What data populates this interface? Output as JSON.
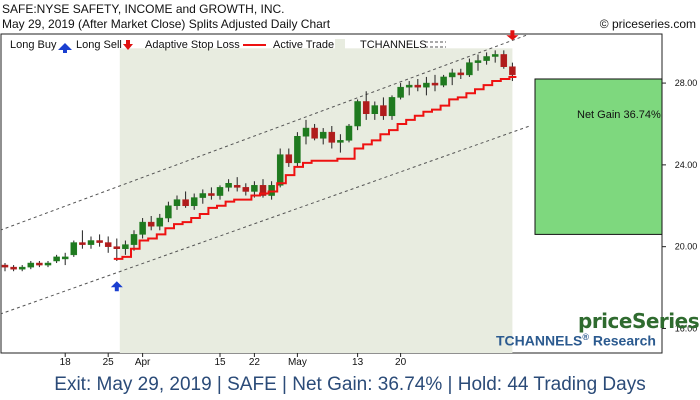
{
  "header": {
    "symbol_line": "SAFE:NYSE SAFETY, INCOME and GROWTH, INC.",
    "date_line": "May 29, 2019 (After Market Close)  Splits Adjusted Daily Chart",
    "copyright": "© priceseries.com"
  },
  "legend": {
    "long_buy": "Long Buy",
    "long_sell": "Long Sell",
    "stop_loss": "Adaptive Stop Loss",
    "active_trade": "Active Trade",
    "tchannels": "TCHANNELS"
  },
  "net_gain_label": "Net Gain 36.74%",
  "brand": {
    "name": "priceSeries",
    "research": "TCHANNELS",
    "research_suffix": " Research",
    "reg": "®"
  },
  "footer": "Exit: May 29, 2019 | SAFE | Net Gain: 36.74% | Hold: 44 Trading Days",
  "colors": {
    "up": "#1f7a1f",
    "down": "#b01c1c",
    "stop": "#ee1111",
    "trade_bg": "#e8ece0",
    "gain_box": "#7ed87e",
    "buy_arrow": "#1a3fd0",
    "sell_arrow": "#e01010",
    "channel": "#555555"
  },
  "chart_data": {
    "type": "candlestick",
    "x_ticks": [
      {
        "label": "18",
        "i": 7
      },
      {
        "label": "25",
        "i": 12
      },
      {
        "label": "Apr",
        "i": 16
      },
      {
        "label": "15",
        "i": 25
      },
      {
        "label": "22",
        "i": 29
      },
      {
        "label": "May",
        "i": 34
      },
      {
        "label": "13",
        "i": 41
      },
      {
        "label": "20",
        "i": 46
      }
    ],
    "y_ticks": [
      16,
      20,
      24,
      28
    ],
    "ylim": [
      14.8,
      30.4
    ],
    "candles": [
      [
        19.1,
        19.2,
        18.8,
        19.0
      ],
      [
        19.0,
        19.1,
        18.8,
        18.9
      ],
      [
        18.9,
        19.1,
        18.8,
        19.0
      ],
      [
        19.0,
        19.3,
        18.9,
        19.2
      ],
      [
        19.2,
        19.3,
        19.0,
        19.1
      ],
      [
        19.1,
        19.3,
        19.0,
        19.2
      ],
      [
        19.3,
        19.6,
        19.2,
        19.5
      ],
      [
        19.4,
        19.7,
        19.1,
        19.5
      ],
      [
        19.6,
        20.3,
        19.5,
        20.2
      ],
      [
        20.2,
        20.8,
        19.9,
        20.1
      ],
      [
        20.1,
        20.5,
        19.9,
        20.3
      ],
      [
        20.3,
        20.6,
        20.0,
        20.2
      ],
      [
        20.2,
        20.5,
        19.7,
        20.0
      ],
      [
        20.0,
        20.4,
        19.3,
        19.9
      ],
      [
        19.9,
        20.3,
        19.6,
        20.1
      ],
      [
        20.1,
        20.8,
        19.8,
        20.6
      ],
      [
        20.6,
        21.4,
        20.4,
        21.2
      ],
      [
        21.2,
        21.5,
        20.8,
        21.0
      ],
      [
        21.0,
        21.6,
        20.8,
        21.4
      ],
      [
        21.4,
        22.2,
        21.2,
        22.0
      ],
      [
        22.0,
        22.5,
        21.8,
        22.3
      ],
      [
        22.3,
        22.7,
        21.9,
        22.0
      ],
      [
        22.0,
        22.6,
        21.8,
        22.4
      ],
      [
        22.4,
        22.8,
        22.1,
        22.6
      ],
      [
        22.6,
        22.9,
        22.3,
        22.5
      ],
      [
        22.5,
        23.0,
        22.3,
        22.9
      ],
      [
        22.9,
        23.3,
        22.7,
        23.1
      ],
      [
        23.0,
        23.4,
        22.7,
        22.9
      ],
      [
        22.9,
        23.1,
        22.5,
        22.7
      ],
      [
        22.7,
        23.2,
        22.4,
        23.0
      ],
      [
        23.0,
        23.3,
        22.4,
        22.5
      ],
      [
        22.5,
        23.2,
        22.3,
        23.0
      ],
      [
        23.0,
        24.8,
        22.9,
        24.5
      ],
      [
        24.5,
        24.8,
        23.9,
        24.1
      ],
      [
        24.1,
        25.6,
        23.9,
        25.4
      ],
      [
        25.4,
        26.2,
        25.0,
        25.8
      ],
      [
        25.8,
        26.0,
        25.2,
        25.3
      ],
      [
        25.3,
        25.8,
        25.0,
        25.6
      ],
      [
        25.6,
        25.9,
        24.8,
        25.1
      ],
      [
        25.1,
        25.5,
        24.6,
        25.2
      ],
      [
        25.2,
        26.0,
        25.1,
        25.9
      ],
      [
        25.9,
        27.2,
        25.7,
        27.1
      ],
      [
        27.1,
        27.6,
        26.2,
        26.5
      ],
      [
        26.5,
        27.1,
        26.2,
        26.9
      ],
      [
        26.9,
        27.3,
        26.2,
        26.4
      ],
      [
        26.4,
        27.4,
        26.2,
        27.3
      ],
      [
        27.3,
        28.0,
        27.2,
        27.8
      ],
      [
        27.8,
        28.1,
        27.4,
        27.9
      ],
      [
        27.9,
        28.2,
        27.6,
        27.8
      ],
      [
        27.8,
        28.3,
        27.4,
        28.0
      ],
      [
        28.0,
        28.4,
        27.6,
        27.9
      ],
      [
        27.9,
        28.4,
        27.8,
        28.3
      ],
      [
        28.3,
        28.7,
        27.9,
        28.5
      ],
      [
        28.5,
        28.7,
        28.2,
        28.4
      ],
      [
        28.4,
        29.2,
        28.3,
        29.0
      ],
      [
        29.0,
        29.4,
        28.6,
        29.1
      ],
      [
        29.1,
        29.5,
        28.9,
        29.3
      ],
      [
        29.3,
        29.6,
        29.0,
        29.4
      ],
      [
        29.4,
        29.6,
        28.7,
        28.8
      ],
      [
        28.8,
        29.0,
        28.1,
        28.4
      ]
    ],
    "stop_loss": [
      [
        13,
        19.4
      ],
      [
        14,
        19.5
      ],
      [
        15,
        19.9
      ],
      [
        16,
        20.3
      ],
      [
        17,
        20.4
      ],
      [
        18,
        20.6
      ],
      [
        19,
        20.9
      ],
      [
        20,
        21.1
      ],
      [
        21,
        21.2
      ],
      [
        22,
        21.4
      ],
      [
        23,
        21.6
      ],
      [
        24,
        21.9
      ],
      [
        25,
        22.0
      ],
      [
        26,
        22.2
      ],
      [
        27,
        22.3
      ],
      [
        28,
        22.3
      ],
      [
        29,
        22.5
      ],
      [
        30,
        22.6
      ],
      [
        31,
        22.7
      ],
      [
        32,
        23.1
      ],
      [
        33,
        23.5
      ],
      [
        34,
        23.9
      ],
      [
        35,
        24.1
      ],
      [
        36,
        24.2
      ],
      [
        37,
        24.2
      ],
      [
        38,
        24.2
      ],
      [
        39,
        24.3
      ],
      [
        40,
        24.3
      ],
      [
        41,
        24.8
      ],
      [
        42,
        25.0
      ],
      [
        43,
        25.2
      ],
      [
        44,
        25.5
      ],
      [
        45,
        25.7
      ],
      [
        46,
        26.0
      ],
      [
        47,
        26.2
      ],
      [
        48,
        26.4
      ],
      [
        49,
        26.6
      ],
      [
        50,
        26.7
      ],
      [
        51,
        26.9
      ],
      [
        52,
        27.2
      ],
      [
        53,
        27.3
      ],
      [
        54,
        27.5
      ],
      [
        55,
        27.7
      ],
      [
        56,
        27.9
      ],
      [
        57,
        28.1
      ],
      [
        58,
        28.2
      ],
      [
        59,
        28.3
      ]
    ],
    "channel_lines": [
      {
        "from": [
          0,
          20.8
        ],
        "to": [
          61,
          30.4
        ]
      },
      {
        "from": [
          0,
          16.7
        ],
        "to": [
          61,
          25.9
        ]
      }
    ],
    "active_trade": {
      "start_i": 13,
      "end_i": 59,
      "high": 29.7
    },
    "buy_signal": {
      "i": 13,
      "price": 18.6
    },
    "sell_signal": {
      "i": 59,
      "price": 29.9
    },
    "gain_box": {
      "from_price": 20.6,
      "to_price": 28.2
    }
  }
}
